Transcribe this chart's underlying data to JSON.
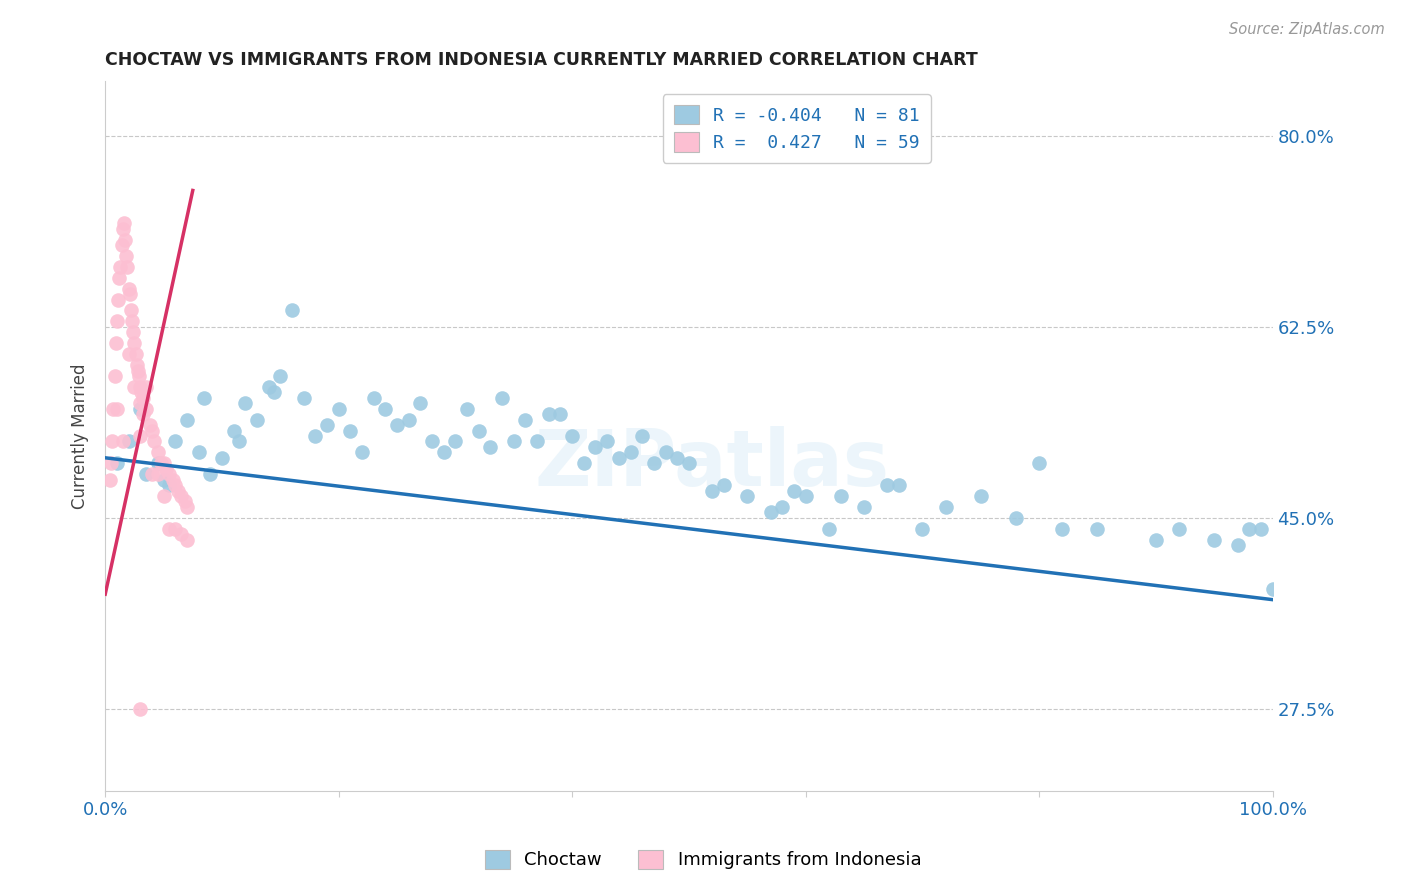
{
  "title": "CHOCTAW VS IMMIGRANTS FROM INDONESIA CURRENTLY MARRIED CORRELATION CHART",
  "source": "Source: ZipAtlas.com",
  "ylabel": "Currently Married",
  "y_tick_vals": [
    27.5,
    45.0,
    62.5,
    80.0
  ],
  "y_tick_labels": [
    "27.5%",
    "45.0%",
    "62.5%",
    "80.0%"
  ],
  "x_tick_vals": [
    0,
    20,
    40,
    60,
    80,
    100
  ],
  "x_tick_labels": [
    "0.0%",
    "",
    "",
    "",
    "",
    "100.0%"
  ],
  "legend_line1": "R = -0.404   N = 81",
  "legend_line2": "R =  0.427   N = 59",
  "blue_color": "#9ecae1",
  "pink_color": "#fcbfd2",
  "line_blue": "#2171b5",
  "line_pink": "#d63165",
  "watermark": "ZIPatlas",
  "background_color": "#ffffff",
  "grid_color": "#c8c8c8",
  "xlim": [
    0,
    100
  ],
  "ylim": [
    20,
    85
  ],
  "blue_line_x": [
    0,
    100
  ],
  "blue_line_y": [
    50.5,
    37.5
  ],
  "pink_line_x": [
    0,
    7.5
  ],
  "pink_line_y": [
    38.0,
    75.0
  ],
  "blue_x": [
    1.0,
    2.0,
    3.0,
    4.5,
    5.5,
    6.0,
    7.0,
    8.0,
    9.0,
    10.0,
    11.0,
    12.0,
    13.0,
    14.0,
    15.0,
    16.0,
    17.0,
    18.0,
    19.0,
    20.0,
    21.0,
    22.0,
    23.0,
    24.0,
    25.0,
    26.0,
    27.0,
    28.0,
    29.0,
    30.0,
    31.0,
    32.0,
    33.0,
    34.0,
    35.0,
    36.0,
    37.0,
    38.0,
    39.0,
    40.0,
    41.0,
    42.0,
    43.0,
    44.0,
    45.0,
    46.0,
    47.0,
    48.0,
    49.0,
    50.0,
    52.0,
    53.0,
    55.0,
    57.0,
    58.0,
    59.0,
    60.0,
    62.0,
    63.0,
    65.0,
    67.0,
    68.0,
    70.0,
    72.0,
    75.0,
    78.0,
    80.0,
    82.0,
    85.0,
    90.0,
    92.0,
    95.0,
    97.0,
    98.0,
    99.0,
    100.0,
    3.5,
    5.0,
    8.5,
    11.5,
    14.5
  ],
  "blue_y": [
    50.0,
    52.0,
    55.0,
    50.0,
    48.0,
    52.0,
    54.0,
    51.0,
    49.0,
    50.5,
    53.0,
    55.5,
    54.0,
    57.0,
    58.0,
    64.0,
    56.0,
    52.5,
    53.5,
    55.0,
    53.0,
    51.0,
    56.0,
    55.0,
    53.5,
    54.0,
    55.5,
    52.0,
    51.0,
    52.0,
    55.0,
    53.0,
    51.5,
    56.0,
    52.0,
    54.0,
    52.0,
    54.5,
    54.5,
    52.5,
    50.0,
    51.5,
    52.0,
    50.5,
    51.0,
    52.5,
    50.0,
    51.0,
    50.5,
    50.0,
    47.5,
    48.0,
    47.0,
    45.5,
    46.0,
    47.5,
    47.0,
    44.0,
    47.0,
    46.0,
    48.0,
    48.0,
    44.0,
    46.0,
    47.0,
    45.0,
    50.0,
    44.0,
    44.0,
    43.0,
    44.0,
    43.0,
    42.5,
    44.0,
    44.0,
    38.5,
    49.0,
    48.5,
    56.0,
    52.0,
    56.5
  ],
  "pink_x": [
    0.5,
    0.6,
    0.7,
    0.8,
    0.9,
    1.0,
    1.1,
    1.2,
    1.3,
    1.4,
    1.5,
    1.6,
    1.7,
    1.8,
    1.9,
    2.0,
    2.1,
    2.2,
    2.3,
    2.4,
    2.5,
    2.6,
    2.7,
    2.8,
    2.9,
    3.0,
    3.1,
    3.2,
    3.5,
    3.8,
    4.0,
    4.2,
    4.5,
    4.8,
    5.0,
    5.2,
    5.5,
    5.8,
    6.0,
    6.2,
    6.5,
    6.8,
    7.0,
    0.4,
    1.0,
    1.5,
    2.0,
    2.5,
    3.0,
    3.5,
    4.0,
    4.5,
    5.0,
    5.5,
    6.0,
    6.5,
    7.0,
    3.0,
    3.2
  ],
  "pink_y": [
    50.0,
    52.0,
    55.0,
    58.0,
    61.0,
    63.0,
    65.0,
    67.0,
    68.0,
    70.0,
    71.5,
    72.0,
    70.5,
    69.0,
    68.0,
    66.0,
    65.5,
    64.0,
    63.0,
    62.0,
    61.0,
    60.0,
    59.0,
    58.5,
    58.0,
    57.0,
    56.5,
    56.0,
    55.0,
    53.5,
    53.0,
    52.0,
    51.0,
    50.0,
    50.0,
    49.5,
    49.0,
    48.5,
    48.0,
    47.5,
    47.0,
    46.5,
    46.0,
    48.5,
    55.0,
    52.0,
    60.0,
    57.0,
    52.5,
    57.0,
    49.0,
    49.0,
    47.0,
    44.0,
    44.0,
    43.5,
    43.0,
    55.5,
    54.5
  ],
  "pink_outlier_x": [
    3.0
  ],
  "pink_outlier_y": [
    27.5
  ]
}
